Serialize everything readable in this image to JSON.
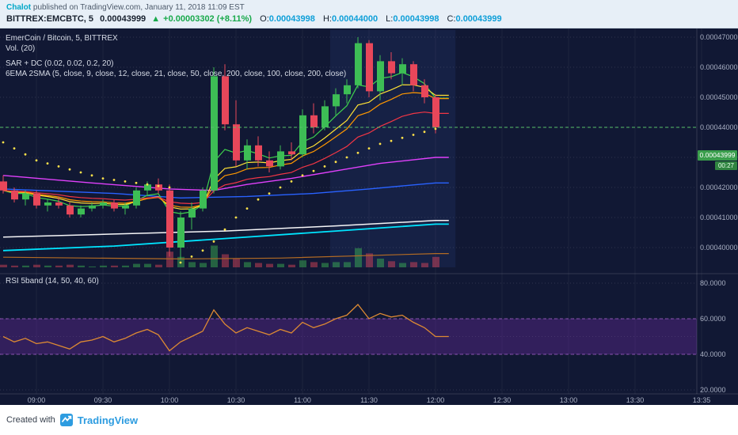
{
  "header": {
    "byline": {
      "author": "Chalot",
      "rest": " published on TradingView.com, January 11, 2018 11:09 EST"
    },
    "symbol_line": {
      "symbol": "BITTREX:EMCBTC, 5",
      "last": "0.00043999",
      "up_arrow": "▲",
      "change": "+0.00003302 (+8.11%)",
      "o_label": "O:",
      "o": "0.00043998",
      "h_label": "H:",
      "h": "0.00044000",
      "l_label": "L:",
      "l": "0.00043998",
      "c_label": "C:",
      "c": "0.00043999"
    }
  },
  "legend": {
    "line1": "EmerCoin / Bitcoin, 5, BITTREX",
    "line2": "Vol. (20)",
    "line3": "SAR + DC (0.02, 0.02, 0.2, 20)",
    "line4": "6EMA 2SMA (5, close, 9, close, 12, close, 21, close, 50, close, 200, close, 100, close, 200, close)",
    "rsi": "RSI 5band (14, 50, 40, 60)"
  },
  "price_label": {
    "value": "0.00043999",
    "countdown": "00:27"
  },
  "footer": {
    "created_with": "Created with",
    "brand": "TradingView"
  },
  "chart_data": {
    "type": "candlestick",
    "title": "EmerCoin / Bitcoin, 5, BITTREX",
    "interval": "5 minutes",
    "price_unit": "values below are in units of 0.00001 BTC",
    "last_units": 44.0,
    "last_price": "0.00043999",
    "price_axis": {
      "min": "0.00040000",
      "max": "0.00047000",
      "ticks": [
        {
          "label": "0.00047000",
          "u": 47
        },
        {
          "label": "0.00046000",
          "u": 46
        },
        {
          "label": "0.00045000",
          "u": 45
        },
        {
          "label": "0.00044000",
          "u": 44
        },
        {
          "label": "0.00043000",
          "u": 43
        },
        {
          "label": "0.00042000",
          "u": 42
        },
        {
          "label": "0.00041000",
          "u": 41
        },
        {
          "label": "0.00040000",
          "u": 40
        }
      ]
    },
    "time_axis": [
      "09:00",
      "09:30",
      "10:00",
      "10:30",
      "11:00",
      "11:30",
      "12:00",
      "12:30",
      "13:00",
      "13:30",
      "13:35"
    ],
    "candles": {
      "columns": [
        "time",
        "open",
        "high",
        "low",
        "close",
        "volume",
        "sar"
      ],
      "rows": [
        [
          "08:45",
          42.2,
          42.4,
          41.8,
          41.9,
          3,
          43.5
        ],
        [
          "08:50",
          41.9,
          42.0,
          41.5,
          41.6,
          2,
          43.3
        ],
        [
          "08:55",
          41.6,
          41.9,
          41.4,
          41.8,
          2,
          43.1
        ],
        [
          "09:00",
          41.8,
          41.9,
          41.3,
          41.4,
          3,
          42.9
        ],
        [
          "09:05",
          41.4,
          41.6,
          41.2,
          41.5,
          2,
          42.8
        ],
        [
          "09:10",
          41.5,
          41.7,
          41.3,
          41.4,
          2,
          42.7
        ],
        [
          "09:15",
          41.4,
          41.5,
          41.0,
          41.1,
          3,
          42.6
        ],
        [
          "09:20",
          41.1,
          41.4,
          41.0,
          41.3,
          2,
          42.5
        ],
        [
          "09:25",
          41.3,
          41.5,
          41.2,
          41.4,
          1,
          42.4
        ],
        [
          "09:30",
          41.4,
          41.6,
          41.3,
          41.5,
          2,
          42.3
        ],
        [
          "09:35",
          41.5,
          41.6,
          41.2,
          41.3,
          2,
          42.25
        ],
        [
          "09:40",
          41.3,
          41.5,
          41.1,
          41.4,
          2,
          42.2
        ],
        [
          "09:45",
          41.4,
          42.0,
          41.3,
          41.9,
          4,
          42.15
        ],
        [
          "09:50",
          41.9,
          42.2,
          41.7,
          42.1,
          4,
          42.1
        ],
        [
          "09:55",
          42.1,
          42.3,
          41.8,
          41.9,
          3,
          42.05
        ],
        [
          "10:00",
          41.9,
          42.1,
          39.7,
          40.0,
          18,
          42.0
        ],
        [
          "10:05",
          40.0,
          41.2,
          39.6,
          41.0,
          12,
          39.5
        ],
        [
          "10:10",
          41.0,
          41.5,
          40.6,
          41.3,
          6,
          39.7
        ],
        [
          "10:15",
          41.3,
          42.0,
          41.2,
          41.9,
          5,
          39.9
        ],
        [
          "10:20",
          41.9,
          46.0,
          41.8,
          45.7,
          25,
          40.2
        ],
        [
          "10:25",
          45.7,
          46.1,
          43.9,
          44.1,
          15,
          40.6
        ],
        [
          "10:30",
          44.1,
          44.9,
          42.7,
          42.9,
          10,
          41.0
        ],
        [
          "10:35",
          42.9,
          43.6,
          42.6,
          43.4,
          6,
          41.3
        ],
        [
          "10:40",
          43.4,
          43.7,
          42.7,
          42.9,
          5,
          41.6
        ],
        [
          "10:45",
          42.9,
          43.2,
          42.5,
          42.7,
          4,
          41.8
        ],
        [
          "10:50",
          42.7,
          43.4,
          42.6,
          43.2,
          4,
          42.0
        ],
        [
          "10:55",
          43.2,
          43.5,
          42.9,
          43.1,
          3,
          42.2
        ],
        [
          "11:00",
          43.1,
          44.6,
          43.0,
          44.4,
          8,
          42.4
        ],
        [
          "11:05",
          44.4,
          44.8,
          43.8,
          44.0,
          6,
          42.55
        ],
        [
          "11:10",
          44.0,
          44.9,
          43.9,
          44.7,
          5,
          42.7
        ],
        [
          "11:15",
          44.7,
          45.3,
          44.4,
          45.1,
          6,
          42.85
        ],
        [
          "11:20",
          45.1,
          45.6,
          44.8,
          45.4,
          6,
          43.0
        ],
        [
          "11:25",
          45.4,
          47.0,
          45.3,
          46.8,
          22,
          43.15
        ],
        [
          "11:30",
          46.8,
          46.9,
          45.0,
          45.2,
          16,
          43.3
        ],
        [
          "11:35",
          45.2,
          46.4,
          44.9,
          46.2,
          10,
          43.45
        ],
        [
          "11:40",
          46.2,
          46.5,
          45.6,
          45.8,
          7,
          43.55
        ],
        [
          "11:45",
          45.8,
          46.3,
          45.4,
          46.1,
          5,
          43.65
        ],
        [
          "11:50",
          46.1,
          46.2,
          45.2,
          45.4,
          6,
          43.75
        ],
        [
          "11:55",
          45.4,
          45.6,
          44.8,
          45.0,
          5,
          43.85
        ],
        [
          "12:00",
          45.0,
          45.1,
          43.8,
          44.0,
          12,
          43.95
        ]
      ]
    },
    "fast_emas": [
      {
        "period": 5,
        "color": "#3fd24d"
      },
      {
        "period": 9,
        "color": "#ffe135"
      },
      {
        "period": 12,
        "color": "#ff9800"
      },
      {
        "period": 21,
        "color": "#f23645"
      }
    ],
    "ma_lines": [
      {
        "id": "ema50",
        "name": "EMA 50",
        "color": "#e040fb",
        "width": 1.4,
        "points": [
          [
            0,
            42.4
          ],
          [
            8,
            42.15
          ],
          [
            15,
            41.95
          ],
          [
            19,
            41.9
          ],
          [
            22,
            42.1
          ],
          [
            26,
            42.3
          ],
          [
            30,
            42.55
          ],
          [
            34,
            42.8
          ],
          [
            39,
            43.0
          ]
        ]
      },
      {
        "id": "sma100",
        "name": "SMA 100",
        "color": "#2962ff",
        "width": 1.4,
        "points": [
          [
            0,
            41.95
          ],
          [
            10,
            41.8
          ],
          [
            16,
            41.65
          ],
          [
            22,
            41.7
          ],
          [
            28,
            41.8
          ],
          [
            33,
            41.95
          ],
          [
            39,
            42.15
          ]
        ]
      },
      {
        "id": "sma200",
        "name": "SMA 200",
        "color": "#f5f5f7",
        "width": 1.5,
        "points": [
          [
            0,
            40.35
          ],
          [
            10,
            40.45
          ],
          [
            20,
            40.55
          ],
          [
            30,
            40.72
          ],
          [
            39,
            40.9
          ]
        ]
      },
      {
        "id": "ema200",
        "name": "EMA 200",
        "color": "#00e5ff",
        "width": 1.8,
        "points": [
          [
            0,
            39.9
          ],
          [
            10,
            40.05
          ],
          [
            20,
            40.3
          ],
          [
            30,
            40.55
          ],
          [
            39,
            40.78
          ]
        ]
      },
      {
        "id": "dc-lower",
        "name": "DC lower",
        "color": "#b36b24",
        "width": 1.2,
        "points": [
          [
            0,
            39.68
          ],
          [
            16,
            39.62
          ],
          [
            25,
            39.65
          ],
          [
            39,
            39.8
          ]
        ]
      }
    ],
    "highlight_band": {
      "start": 29.5,
      "end": 40.8
    },
    "rsi": {
      "label": "RSI 5band (14, 50, 40, 60)",
      "band": [
        40,
        60
      ],
      "axis_ticks": [
        80,
        60,
        40,
        20
      ],
      "values": [
        50,
        47,
        49,
        46,
        47,
        45,
        43,
        47,
        48,
        50,
        47,
        49,
        52,
        54,
        51,
        42,
        47,
        50,
        53,
        65,
        57,
        52,
        55,
        53,
        51,
        54,
        52,
        58,
        55,
        57,
        60,
        62,
        68,
        60,
        63,
        61,
        62,
        58,
        55,
        50
      ]
    },
    "colors": {
      "bg": "#111834",
      "grid_v": "rgba(255,255,255,0.05)",
      "grid_h": "rgba(255,255,255,0.13)",
      "axis_text": "#a9b0c3",
      "up": "#3dbd55",
      "down": "#e8475a",
      "vol_up": "rgba(61,189,85,0.45)",
      "vol_down": "rgba(232,71,90,0.45)",
      "sar": "#ffe24a",
      "price_line": "#56c06a",
      "price_label_bg": "#3a9e4c",
      "countdown_bg": "#2f8440",
      "rsi_line": "#dd8a33",
      "rsi_band_fill": "rgba(112,47,168,0.35)",
      "rsi_band_line": "#a85fd0",
      "divider": "rgba(255,255,255,0.14)",
      "highlight": "rgba(72,120,230,0.10)",
      "author": "#00a7c7",
      "positive": "#18a94b",
      "ohlc_value": "#0e9fd8",
      "brand_blue": "#2d9ce0"
    }
  }
}
